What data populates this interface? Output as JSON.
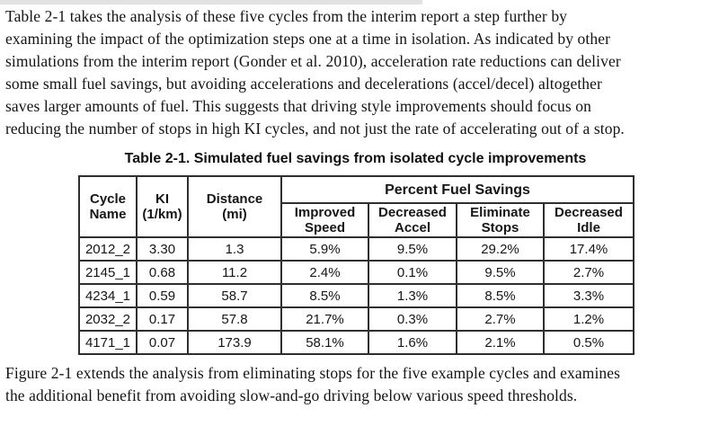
{
  "document": {
    "paragraph_top": "Table 2-1 takes the analysis of these five cycles from the interim report a step further by\nexamining the impact of the optimization steps one at a time in isolation. As indicated by other\nsimulations from the interim report (Gonder et al. 2010), acceleration rate reductions can deliver\nsome small fuel savings, but avoiding accelerations and decelerations (accel/decel) altogether\nsaves larger amounts of fuel. This suggests that driving style improvements should focus on\nreducing the number of stops in high KI cycles, and not just the rate of accelerating out of a stop.",
    "paragraph_bottom": "Figure 2-1 extends the analysis from eliminating stops for the five example cycles and examines\nthe additional benefit from avoiding slow-and-go driving below various speed thresholds."
  },
  "table": {
    "title": "Table 2-1. Simulated fuel savings from isolated cycle improvements",
    "column_headers": {
      "cycle_name": "Cycle\nName",
      "ki": "KI\n(1/km)",
      "distance": "Distance\n(mi)",
      "group": "Percent Fuel Savings",
      "improved_speed": "Improved\nSpeed",
      "decreased_accel": "Decreased\nAccel",
      "eliminate_stops": "Eliminate\nStops",
      "decreased_idle": "Decreased\nIdle"
    },
    "rows": [
      [
        "2012_2",
        "3.30",
        "1.3",
        "5.9%",
        "9.5%",
        "29.2%",
        "17.4%"
      ],
      [
        "2145_1",
        "0.68",
        "11.2",
        "2.4%",
        "0.1%",
        "9.5%",
        "2.7%"
      ],
      [
        "4234_1",
        "0.59",
        "58.7",
        "8.5%",
        "1.3%",
        "8.5%",
        "3.3%"
      ],
      [
        "2032_2",
        "0.17",
        "57.8",
        "21.7%",
        "0.3%",
        "2.7%",
        "1.2%"
      ],
      [
        "4171_1",
        "0.07",
        "173.9",
        "58.1%",
        "1.6%",
        "2.1%",
        "0.5%"
      ]
    ],
    "colors": {
      "border": "#2f2f2f",
      "text": "#141414",
      "background": "#ffffff"
    }
  }
}
